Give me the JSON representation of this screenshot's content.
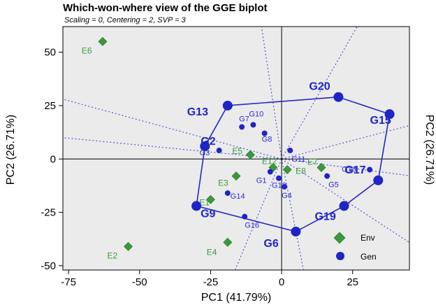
{
  "chart_data": {
    "type": "scatter",
    "title": "Which-won-where view of the GGE biplot",
    "subtitle": "Scaling = 0, Centering = 2, SVP = 3",
    "xlabel": "PC1 (41.79%)",
    "ylabel": "PC2 (26.71%)",
    "ylabel_right": "PC2 (26.71%)",
    "xlim": [
      -77,
      45
    ],
    "ylim": [
      -52,
      62
    ],
    "xticks": [
      -75,
      -50,
      -25,
      0,
      25
    ],
    "yticks": [
      -50,
      -25,
      0,
      25,
      50
    ],
    "xtick_labels": [
      "-75",
      "-50",
      "-25",
      "0",
      "25"
    ],
    "ytick_labels": [
      "-50",
      "-25",
      "0",
      "25",
      "50"
    ],
    "colors": {
      "env": "#3a9a3a",
      "gen": "#1f24c8",
      "rays": "#4a5ad8",
      "hull": "#2626c8",
      "plot_bg": "#ebebeb"
    },
    "legend": {
      "position": "bottom-right",
      "entries": [
        {
          "name": "Env",
          "marker": "diamond"
        },
        {
          "name": "Gen",
          "marker": "circle"
        }
      ]
    },
    "environments": [
      {
        "label": "E6",
        "x": -63,
        "y": 55
      },
      {
        "label": "E5",
        "x": -11,
        "y": 2
      },
      {
        "label": "E3",
        "x": -16,
        "y": -8
      },
      {
        "label": "E12",
        "x": -3,
        "y": -4
      },
      {
        "label": "E7",
        "x": 14,
        "y": -4
      },
      {
        "label": "E8",
        "x": 2,
        "y": -5
      },
      {
        "label": "E1",
        "x": -25,
        "y": -19
      },
      {
        "label": "E4",
        "x": -19,
        "y": -39
      },
      {
        "label": "E2",
        "x": -54,
        "y": -41
      }
    ],
    "genotypes": [
      {
        "label": "G20",
        "x": 20,
        "y": 29,
        "size": "big"
      },
      {
        "label": "G15",
        "x": 38,
        "y": 21,
        "size": "big"
      },
      {
        "label": "G13",
        "x": -19,
        "y": 25,
        "size": "big"
      },
      {
        "label": "G2",
        "x": -27,
        "y": 6,
        "size": "big"
      },
      {
        "label": "G9",
        "x": -30,
        "y": -22,
        "size": "big"
      },
      {
        "label": "G6",
        "x": 5,
        "y": -34,
        "size": "big"
      },
      {
        "label": "G19",
        "x": 22,
        "y": -22,
        "size": "big"
      },
      {
        "label": "G17",
        "x": 34,
        "y": -10,
        "size": "big"
      },
      {
        "label": "G7",
        "x": -14,
        "y": 15,
        "size": "small"
      },
      {
        "label": "G10",
        "x": -10,
        "y": 16,
        "size": "small"
      },
      {
        "label": "G8",
        "x": -6,
        "y": 12,
        "size": "small"
      },
      {
        "label": "G3",
        "x": -22,
        "y": 4,
        "size": "small"
      },
      {
        "label": "G11",
        "x": 3,
        "y": 4,
        "size": "small"
      },
      {
        "label": "G18",
        "x": 31,
        "y": -5,
        "size": "small"
      },
      {
        "label": "G5",
        "x": 16,
        "y": -8,
        "size": "small"
      },
      {
        "label": "G4",
        "x": 1,
        "y": -13,
        "size": "small"
      },
      {
        "label": "G1",
        "x": -4,
        "y": -6,
        "size": "small"
      },
      {
        "label": "G12",
        "x": -1,
        "y": -9,
        "size": "small"
      },
      {
        "label": "G16",
        "x": -13,
        "y": -27,
        "size": "small"
      },
      {
        "label": "G14",
        "x": -19,
        "y": -16,
        "size": "small"
      }
    ],
    "polygon": [
      "G20",
      "G15",
      "G17",
      "G19",
      "G6",
      "G9",
      "G2",
      "G13"
    ],
    "rays_end": [
      {
        "x": -8,
        "y": 70
      },
      {
        "x": 30,
        "y": 70
      },
      {
        "x": 46,
        "y": 16
      },
      {
        "x": 46,
        "y": -8
      },
      {
        "x": 46,
        "y": -40
      },
      {
        "x": 8,
        "y": -54
      },
      {
        "x": -17,
        "y": -54
      },
      {
        "x": -77,
        "y": 10
      },
      {
        "x": -77,
        "y": 28
      }
    ]
  }
}
